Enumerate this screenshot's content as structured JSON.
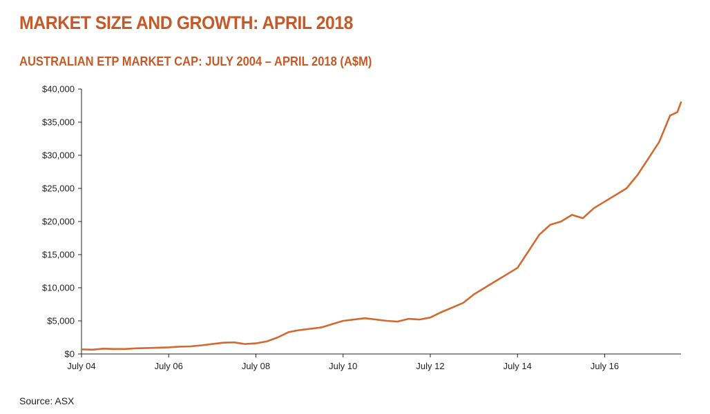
{
  "page": {
    "title": "MARKET SIZE AND GROWTH: APRIL 2018",
    "subtitle": "AUSTRALIAN ETP MARKET CAP: JULY 2004 – APRIL 2018 (A$M)",
    "source": "Source: ASX"
  },
  "chart_data": {
    "type": "line",
    "title": "AUSTRALIAN ETP MARKET CAP: JULY 2004 – APRIL 2018 (A$M)",
    "xlabel": "",
    "ylabel": "",
    "x_ticks": [
      "July 04",
      "July 06",
      "July 08",
      "July 10",
      "July 12",
      "July 14",
      "July 16"
    ],
    "y_ticks": [
      "$0",
      "$5,000",
      "$10,000",
      "$15,000",
      "$20,000",
      "$25,000",
      "$30,000",
      "$35,000",
      "$40,000"
    ],
    "ylim": [
      0,
      40000
    ],
    "xlim": [
      "2004-07",
      "2018-04"
    ],
    "grid": false,
    "legend": "none",
    "line_color": "#d2692f",
    "series": [
      {
        "x": [
          "2004-07",
          "2004-10",
          "2005-01",
          "2005-04",
          "2005-07",
          "2005-10",
          "2006-01",
          "2006-04",
          "2006-07",
          "2006-10",
          "2007-01",
          "2007-04",
          "2007-07",
          "2007-10",
          "2008-01",
          "2008-04",
          "2008-07",
          "2008-10",
          "2009-01",
          "2009-04",
          "2009-07",
          "2009-10",
          "2010-01",
          "2010-04",
          "2010-07",
          "2010-10",
          "2011-01",
          "2011-04",
          "2011-07",
          "2011-10",
          "2012-01",
          "2012-04",
          "2012-07",
          "2012-10",
          "2013-01",
          "2013-04",
          "2013-07",
          "2013-10",
          "2014-01",
          "2014-04",
          "2014-07",
          "2014-10",
          "2015-01",
          "2015-04",
          "2015-07",
          "2015-10",
          "2016-01",
          "2016-04",
          "2016-07",
          "2016-10",
          "2017-01",
          "2017-04",
          "2017-07",
          "2017-10",
          "2018-01",
          "2018-03",
          "2018-04"
        ],
        "values": [
          700,
          650,
          800,
          750,
          750,
          850,
          900,
          950,
          1000,
          1100,
          1150,
          1300,
          1500,
          1700,
          1750,
          1500,
          1600,
          1900,
          2500,
          3300,
          3600,
          3800,
          4000,
          4500,
          5000,
          5200,
          5400,
          5200,
          5000,
          4900,
          5300,
          5200,
          5500,
          6300,
          7000,
          7700,
          9000,
          10000,
          11000,
          12000,
          13000,
          15500,
          18000,
          19500,
          20000,
          21000,
          20500,
          22000,
          23000,
          24000,
          25000,
          27000,
          29500,
          32000,
          36000,
          36500,
          38000
        ]
      }
    ]
  }
}
